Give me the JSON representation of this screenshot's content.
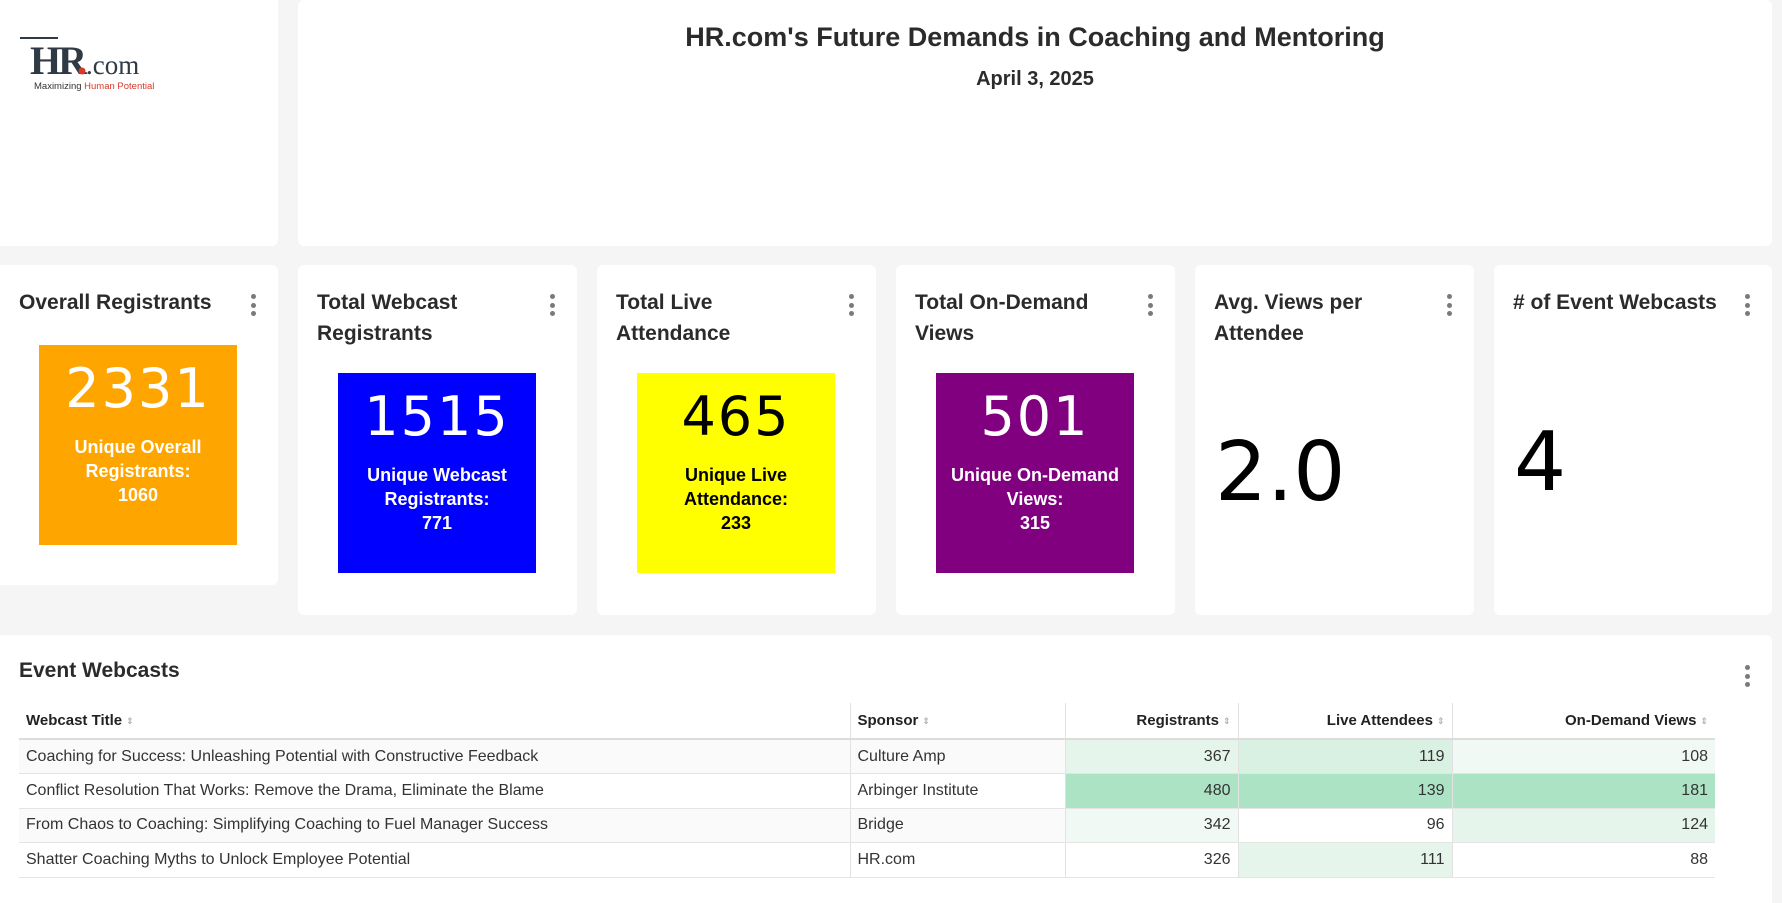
{
  "logo": {
    "brand": "HR",
    "brand_suffix": ".com",
    "tagline_part1": "Maximizing ",
    "tagline_part2": "Human Potential"
  },
  "header": {
    "title": "HR.com's Future Demands in Coaching and Mentoring",
    "date": "April 3, 2025"
  },
  "kpis": [
    {
      "title": "Overall Registrants",
      "value": "2331",
      "sub_label": "Unique Overall Registrants:",
      "sub_value": "1060",
      "bg": "#ffa500",
      "fg": "#ffffff"
    },
    {
      "title": "Total Webcast Registrants",
      "value": "1515",
      "sub_label": "Unique Webcast Registrants:",
      "sub_value": "771",
      "bg": "#0000ff",
      "fg": "#ffffff"
    },
    {
      "title": "Total Live Attendance",
      "value": "465",
      "sub_label": "Unique Live Attendance:",
      "sub_value": "233",
      "bg": "#ffff00",
      "fg": "#000000"
    },
    {
      "title": "Total On-Demand Views",
      "value": "501",
      "sub_label": "Unique On-Demand Views:",
      "sub_value": "315",
      "bg": "#800080",
      "fg": "#ffffff"
    },
    {
      "title": "Avg. Views per Attendee",
      "value": "2.0"
    },
    {
      "title": "# of Event Webcasts",
      "value": "4"
    }
  ],
  "table": {
    "title": "Event Webcasts",
    "columns": [
      "Webcast Title",
      "Sponsor",
      "Registrants",
      "Live Attendees",
      "On-Demand Views"
    ],
    "rows": [
      {
        "title": "Coaching for Success: Unleashing Potential with Constructive Feedback",
        "sponsor": "Culture Amp",
        "registrants": "367",
        "live": "119",
        "ondemand": "108"
      },
      {
        "title": "Conflict Resolution That Works: Remove the Drama, Eliminate the Blame",
        "sponsor": "Arbinger Institute",
        "registrants": "480",
        "live": "139",
        "ondemand": "181"
      },
      {
        "title": "From Chaos to Coaching: Simplifying Coaching to Fuel Manager Success",
        "sponsor": "Bridge",
        "registrants": "342",
        "live": "96",
        "ondemand": "124"
      },
      {
        "title": "Shatter Coaching Myths to Unlock Employee Potential",
        "sponsor": "HR.com",
        "registrants": "326",
        "live": "111",
        "ondemand": "88"
      }
    ],
    "heat_colors": {
      "registrants": [
        "#e6f5ec",
        "#ade3c5",
        "#f1f9f4",
        "#ffffff"
      ],
      "live": [
        "#d8f1e3",
        "#ade3c5",
        "#ffffff",
        "#e6f5ec"
      ],
      "ondemand": [
        "#f1f9f4",
        "#ade3c5",
        "#e6f5ec",
        "#ffffff"
      ]
    }
  }
}
